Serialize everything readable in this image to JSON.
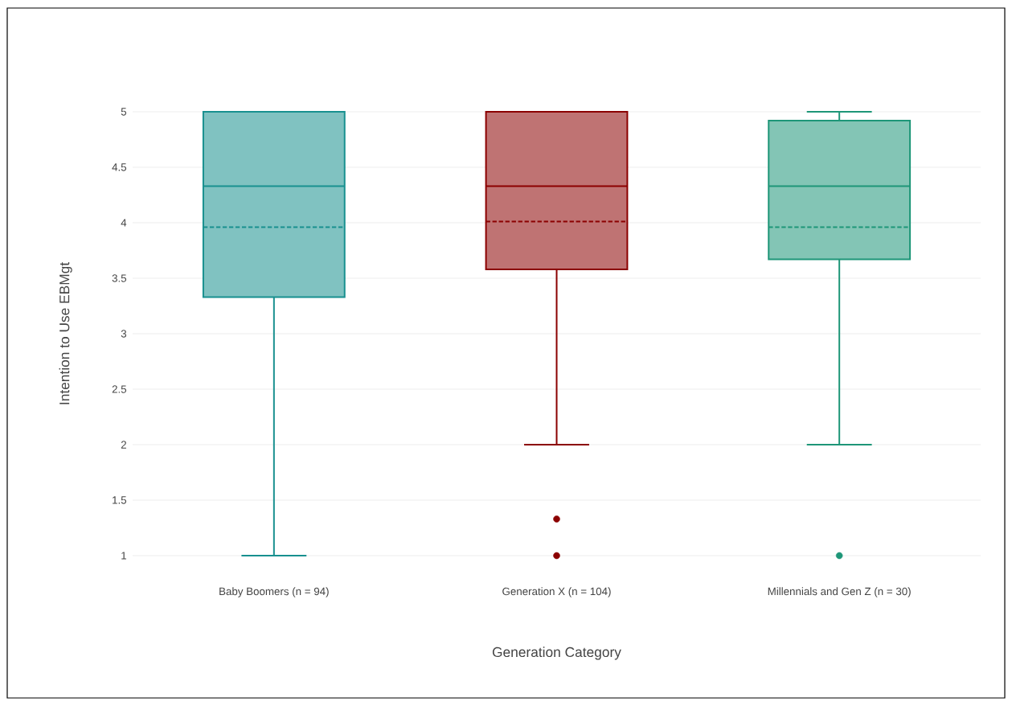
{
  "chart_data": {
    "type": "box",
    "xlabel": "Generation Category",
    "ylabel": "Intention to Use EBMgt",
    "categories": [
      "Baby Boomers (n = 94)",
      "Generation X (n = 104)",
      "Millennials and Gen Z (n = 30)"
    ],
    "colors": [
      "#18908f",
      "#8b0000",
      "#1e9678"
    ],
    "boxes": [
      {
        "low": 1,
        "q1": 3.33,
        "median": 4.33,
        "q3": 5,
        "high": 5,
        "mean": 3.96
      },
      {
        "low": 2,
        "q1": 3.58,
        "median": 4.33,
        "q3": 5,
        "high": 5,
        "mean": 4.01,
        "outliers": [
          1.33,
          1
        ]
      },
      {
        "low": 2,
        "q1": 3.67,
        "median": 4.33,
        "q3": 4.92,
        "high": 5,
        "mean": 3.96,
        "outliers": [
          1
        ]
      }
    ],
    "ylim": [
      1,
      5
    ],
    "yticks": [
      1,
      1.5,
      2,
      2.5,
      3,
      3.5,
      4,
      4.5,
      5
    ],
    "grid": "y"
  }
}
